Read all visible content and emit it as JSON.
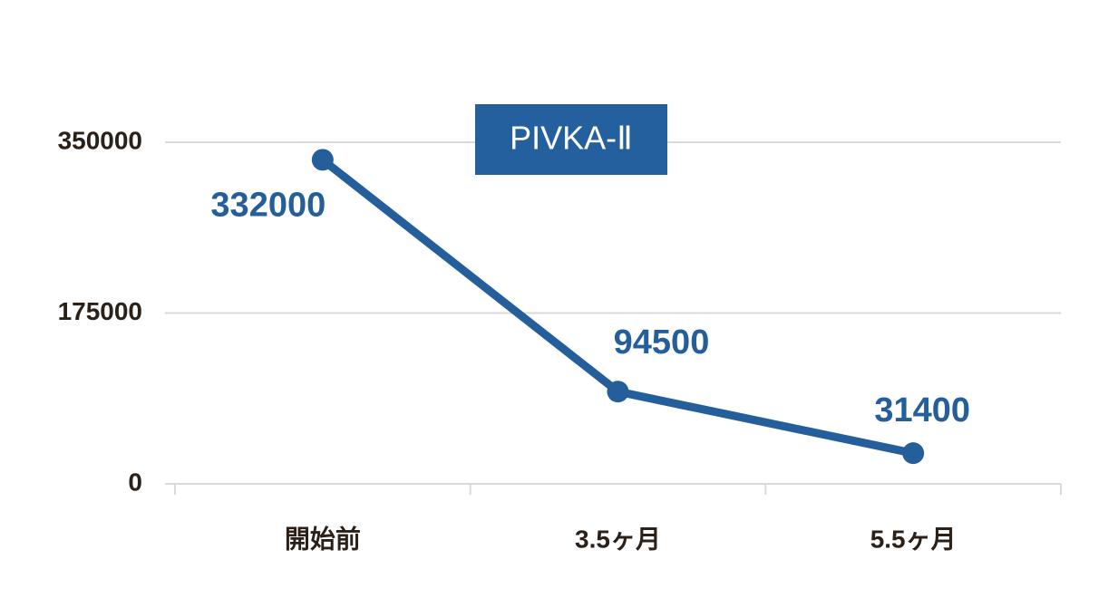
{
  "chart_data": {
    "type": "line",
    "title": "PIVKA-Ⅱ",
    "categories": [
      "開始前",
      "3.5ヶ月",
      "5.5ヶ月"
    ],
    "series": [
      {
        "name": "PIVKA-Ⅱ",
        "color": "#245f9b",
        "values": [
          332000,
          94500,
          31400
        ]
      }
    ],
    "ylim": [
      0,
      350000
    ],
    "yticks": [
      0,
      175000,
      350000
    ],
    "grid": true
  }
}
